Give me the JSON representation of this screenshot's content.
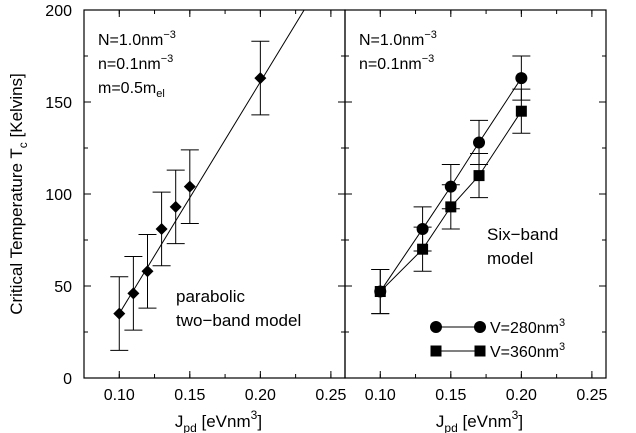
{
  "chart_data": [
    {
      "type": "line",
      "panel": "left",
      "ylabel_main": "Critical Temperature T",
      "ylabel_sub": "c",
      "ylabel_unit": " [Kelvins]",
      "xlabel_main": "J",
      "xlabel_sub": "pd",
      "xlabel_unit": " [eVnm",
      "xlabel_sup": "3",
      "xlabel_close": "]",
      "xlim": [
        0.075,
        0.26
      ],
      "ylim": [
        0,
        200
      ],
      "x_ticks": [
        "0.10",
        "0.15",
        "0.20",
        "0.25"
      ],
      "x_tick_values": [
        0.1,
        0.15,
        0.2,
        0.25
      ],
      "y_ticks": [
        "0",
        "50",
        "100",
        "150",
        "200"
      ],
      "y_tick_values": [
        0,
        50,
        100,
        150,
        200
      ],
      "params": [
        {
          "base": "N=1.0nm",
          "sup": "−3",
          "sub": ""
        },
        {
          "base": "n=0.1nm",
          "sup": "−3",
          "sub": ""
        },
        {
          "base": "m=0.5m",
          "sup": "",
          "sub": "el"
        }
      ],
      "annotation": [
        "parabolic",
        "two−band model"
      ],
      "series": [
        {
          "marker": "diamond",
          "x": [
            0.1,
            0.11,
            0.12,
            0.13,
            0.14,
            0.15,
            0.2
          ],
          "y": [
            35,
            46,
            58,
            81,
            93,
            104,
            163
          ],
          "err": [
            20,
            20,
            20,
            20,
            20,
            20,
            20
          ],
          "fit_line": {
            "x": [
              0.1,
              0.235
            ],
            "y": [
              35,
              205
            ]
          }
        }
      ]
    },
    {
      "type": "line",
      "panel": "right",
      "xlabel_main": "J",
      "xlabel_sub": "pd",
      "xlabel_unit": " [eVnm",
      "xlabel_sup": "3",
      "xlabel_close": "]",
      "xlim": [
        0.075,
        0.26
      ],
      "ylim": [
        0,
        200
      ],
      "x_ticks": [
        "0.10",
        "0.15",
        "0.20",
        "0.25"
      ],
      "x_tick_values": [
        0.1,
        0.15,
        0.2,
        0.25
      ],
      "params": [
        {
          "base": "N=1.0nm",
          "sup": "−3",
          "sub": ""
        },
        {
          "base": "n=0.1nm",
          "sup": "−3",
          "sub": ""
        }
      ],
      "annotation": [
        "Six−band",
        "model"
      ],
      "series": [
        {
          "name": "V=280nm",
          "name_sup": "3",
          "marker": "circle",
          "x": [
            0.1,
            0.13,
            0.15,
            0.17,
            0.2
          ],
          "y": [
            47,
            81,
            104,
            128,
            163
          ],
          "err": [
            12,
            12,
            12,
            12,
            12
          ]
        },
        {
          "name": "V=360nm",
          "name_sup": "3",
          "marker": "square",
          "x": [
            0.1,
            0.13,
            0.15,
            0.17,
            0.2
          ],
          "y": [
            47,
            70,
            93,
            110,
            145
          ],
          "err": [
            12,
            12,
            12,
            12,
            12
          ]
        }
      ]
    }
  ]
}
